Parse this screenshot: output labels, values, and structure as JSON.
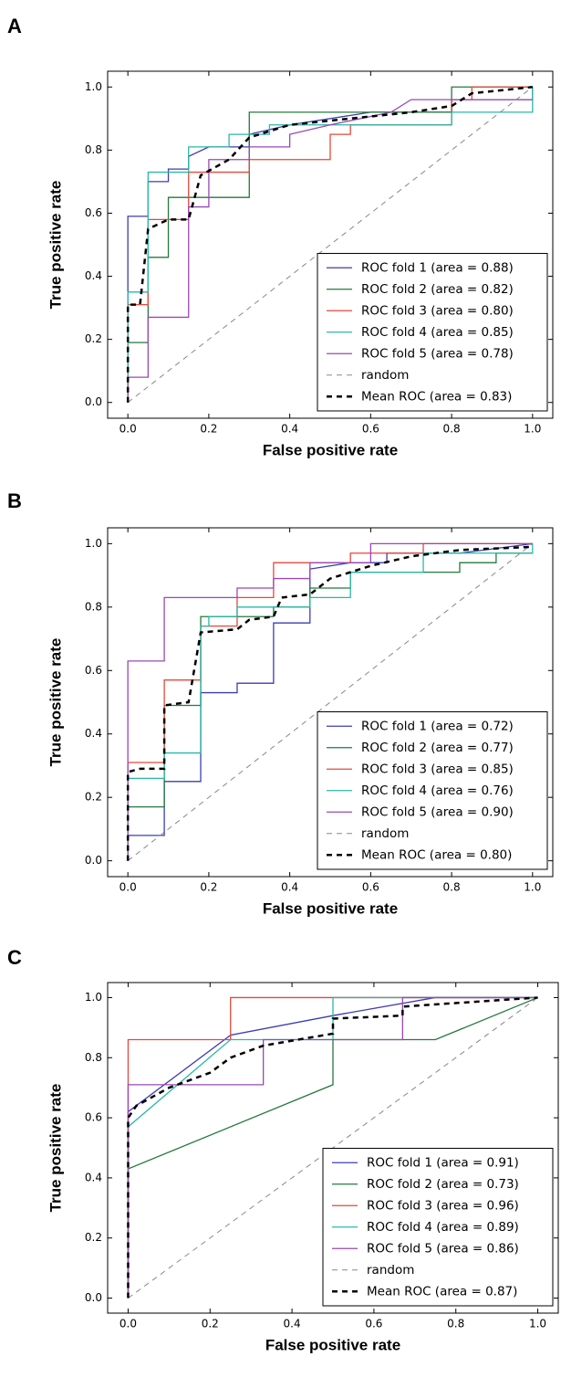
{
  "chart_data": [
    {
      "type": "line",
      "panel_label": "A",
      "xlabel": "False positive rate",
      "ylabel": "True positive rate",
      "xlim": [
        -0.05,
        1.05
      ],
      "ylim": [
        -0.05,
        1.05
      ],
      "xticks": [
        {
          "value": 0,
          "label": "0.0"
        },
        {
          "value": 0.2,
          "label": "0.2"
        },
        {
          "value": 0.4,
          "label": "0.4"
        },
        {
          "value": 0.6,
          "label": "0.6"
        },
        {
          "value": 0.8,
          "label": "0.8"
        },
        {
          "value": 1,
          "label": "1.0"
        }
      ],
      "yticks": [
        {
          "value": 0,
          "label": "0.0"
        },
        {
          "value": 0.2,
          "label": "0.2"
        },
        {
          "value": 0.4,
          "label": "0.4"
        },
        {
          "value": 0.6,
          "label": "0.6"
        },
        {
          "value": 0.8,
          "label": "0.8"
        },
        {
          "value": 1,
          "label": "1.0"
        }
      ],
      "legend": "lower right",
      "series": [
        {
          "name": "ROC fold 1 (area = 0.88)",
          "color": "#3d3db0",
          "linestyle": "solid",
          "linewidth": 1.3,
          "x": [
            0,
            0,
            0.05,
            0.05,
            0.1,
            0.1,
            0.15,
            0.15,
            0.2,
            0.3,
            0.3,
            0.4,
            0.6,
            0.8,
            0.8,
            1,
            1
          ],
          "values": [
            0,
            0.59,
            0.59,
            0.7,
            0.7,
            0.74,
            0.74,
            0.78,
            0.81,
            0.81,
            0.85,
            0.88,
            0.92,
            0.92,
            0.96,
            0.96,
            1
          ]
        },
        {
          "name": "ROC fold 2 (area = 0.82)",
          "color": "#237a3c",
          "linestyle": "solid",
          "linewidth": 1.3,
          "x": [
            0,
            0,
            0.05,
            0.05,
            0.1,
            0.1,
            0.3,
            0.3,
            0.8,
            0.8,
            1
          ],
          "values": [
            0,
            0.19,
            0.19,
            0.46,
            0.46,
            0.65,
            0.65,
            0.92,
            0.92,
            1,
            1
          ]
        },
        {
          "name": "ROC fold 3 (area = 0.80)",
          "color": "#e5483c",
          "linestyle": "solid",
          "linewidth": 1.3,
          "x": [
            0,
            0,
            0.05,
            0.05,
            0.15,
            0.15,
            0.3,
            0.3,
            0.5,
            0.5,
            0.55,
            0.55,
            0.8,
            0.8,
            0.85,
            0.85,
            1
          ],
          "values": [
            0,
            0.31,
            0.31,
            0.58,
            0.58,
            0.73,
            0.73,
            0.77,
            0.77,
            0.85,
            0.85,
            0.88,
            0.88,
            0.96,
            0.96,
            1,
            1
          ]
        },
        {
          "name": "ROC fold 4 (area = 0.85)",
          "color": "#2bb8a8",
          "linestyle": "solid",
          "linewidth": 1.3,
          "x": [
            0,
            0,
            0.05,
            0.05,
            0.15,
            0.15,
            0.25,
            0.25,
            0.35,
            0.35,
            0.8,
            0.8,
            1,
            1
          ],
          "values": [
            0,
            0.35,
            0.35,
            0.73,
            0.73,
            0.81,
            0.81,
            0.85,
            0.85,
            0.88,
            0.88,
            0.92,
            0.92,
            1
          ]
        },
        {
          "name": "ROC fold 5 (area = 0.78)",
          "color": "#9a48b4",
          "linestyle": "solid",
          "linewidth": 1.3,
          "x": [
            0,
            0,
            0.05,
            0.05,
            0.15,
            0.15,
            0.2,
            0.2,
            0.3,
            0.3,
            0.4,
            0.4,
            0.5,
            0.65,
            0.7,
            1
          ],
          "values": [
            0,
            0.08,
            0.08,
            0.27,
            0.27,
            0.62,
            0.62,
            0.77,
            0.77,
            0.81,
            0.81,
            0.85,
            0.88,
            0.92,
            0.96,
            0.96
          ]
        },
        {
          "name": "random",
          "color": "#888888",
          "linestyle": "dashed",
          "linewidth": 1,
          "x": [
            0,
            1
          ],
          "values": [
            0,
            1
          ]
        },
        {
          "name": "Mean ROC (area = 0.83)",
          "color": "#000000",
          "linestyle": "dashed",
          "linewidth": 2.5,
          "x": [
            0,
            0,
            0.03,
            0.05,
            0.1,
            0.15,
            0.18,
            0.25,
            0.3,
            0.4,
            0.55,
            0.7,
            0.8,
            0.85,
            1
          ],
          "values": [
            0,
            0.31,
            0.31,
            0.55,
            0.58,
            0.58,
            0.72,
            0.77,
            0.84,
            0.88,
            0.9,
            0.92,
            0.94,
            0.98,
            1
          ]
        }
      ]
    },
    {
      "type": "line",
      "panel_label": "B",
      "xlabel": "False positive rate",
      "ylabel": "True positive rate",
      "xlim": [
        -0.05,
        1.05
      ],
      "ylim": [
        -0.05,
        1.05
      ],
      "xticks": [
        {
          "value": 0,
          "label": "0.0"
        },
        {
          "value": 0.2,
          "label": "0.2"
        },
        {
          "value": 0.4,
          "label": "0.4"
        },
        {
          "value": 0.6,
          "label": "0.6"
        },
        {
          "value": 0.8,
          "label": "0.8"
        },
        {
          "value": 1,
          "label": "1.0"
        }
      ],
      "yticks": [
        {
          "value": 0,
          "label": "0.0"
        },
        {
          "value": 0.2,
          "label": "0.2"
        },
        {
          "value": 0.4,
          "label": "0.4"
        },
        {
          "value": 0.6,
          "label": "0.6"
        },
        {
          "value": 0.8,
          "label": "0.8"
        },
        {
          "value": 1,
          "label": "1.0"
        }
      ],
      "legend": "lower right",
      "series": [
        {
          "name": "ROC fold 1 (area = 0.72)",
          "color": "#3d3db0",
          "linestyle": "solid",
          "linewidth": 1.3,
          "x": [
            0,
            0,
            0.09,
            0.09,
            0.18,
            0.18,
            0.27,
            0.27,
            0.36,
            0.36,
            0.45,
            0.45,
            0.55,
            0.64,
            0.64,
            0.82,
            1
          ],
          "values": [
            0,
            0.08,
            0.08,
            0.25,
            0.25,
            0.53,
            0.53,
            0.56,
            0.56,
            0.75,
            0.75,
            0.92,
            0.94,
            0.94,
            0.97,
            0.97,
            1
          ]
        },
        {
          "name": "ROC fold 2 (area = 0.77)",
          "color": "#237a3c",
          "linestyle": "solid",
          "linewidth": 1.3,
          "x": [
            0,
            0,
            0.09,
            0.09,
            0.18,
            0.18,
            0.36,
            0.36,
            0.45,
            0.45,
            0.55,
            0.55,
            0.82,
            0.82,
            0.91,
            0.91,
            1
          ],
          "values": [
            0,
            0.17,
            0.17,
            0.49,
            0.49,
            0.77,
            0.77,
            0.8,
            0.8,
            0.86,
            0.86,
            0.91,
            0.91,
            0.94,
            0.94,
            0.97,
            0.97
          ]
        },
        {
          "name": "ROC fold 3 (area = 0.85)",
          "color": "#e5483c",
          "linestyle": "solid",
          "linewidth": 1.3,
          "x": [
            0,
            0,
            0.09,
            0.09,
            0.18,
            0.18,
            0.27,
            0.27,
            0.36,
            0.36,
            0.55,
            0.55,
            0.73,
            0.73,
            1
          ],
          "values": [
            0,
            0.31,
            0.31,
            0.57,
            0.57,
            0.74,
            0.74,
            0.83,
            0.83,
            0.94,
            0.94,
            0.97,
            0.97,
            1,
            1
          ]
        },
        {
          "name": "ROC fold 4 (area = 0.76)",
          "color": "#2bb8a8",
          "linestyle": "solid",
          "linewidth": 1.3,
          "x": [
            0,
            0,
            0.09,
            0.09,
            0.18,
            0.18,
            0.2,
            0.2,
            0.27,
            0.27,
            0.45,
            0.45,
            0.55,
            0.55,
            0.73,
            0.73,
            1,
            1
          ],
          "values": [
            0,
            0.26,
            0.26,
            0.34,
            0.34,
            0.74,
            0.74,
            0.77,
            0.77,
            0.8,
            0.8,
            0.83,
            0.83,
            0.91,
            0.91,
            0.97,
            0.97,
            1
          ]
        },
        {
          "name": "ROC fold 5 (area = 0.90)",
          "color": "#9a48b4",
          "linestyle": "solid",
          "linewidth": 1.3,
          "x": [
            0,
            0,
            0.09,
            0.09,
            0.27,
            0.27,
            0.36,
            0.36,
            0.45,
            0.45,
            0.6,
            0.6,
            1
          ],
          "values": [
            0,
            0.63,
            0.63,
            0.83,
            0.83,
            0.86,
            0.86,
            0.89,
            0.89,
            0.94,
            0.94,
            1,
            1
          ]
        },
        {
          "name": "random",
          "color": "#888888",
          "linestyle": "dashed",
          "linewidth": 1,
          "x": [
            0,
            1
          ],
          "values": [
            0,
            1
          ]
        },
        {
          "name": "Mean ROC (area = 0.80)",
          "color": "#000000",
          "linestyle": "dashed",
          "linewidth": 2.5,
          "x": [
            0,
            0,
            0.03,
            0.09,
            0.09,
            0.15,
            0.18,
            0.27,
            0.3,
            0.36,
            0.38,
            0.45,
            0.5,
            0.6,
            0.7,
            0.82,
            1
          ],
          "values": [
            0,
            0.28,
            0.29,
            0.29,
            0.49,
            0.5,
            0.72,
            0.73,
            0.76,
            0.77,
            0.83,
            0.84,
            0.89,
            0.93,
            0.96,
            0.98,
            0.99
          ]
        }
      ]
    },
    {
      "type": "line",
      "panel_label": "C",
      "xlabel": "False positive rate",
      "ylabel": "True positive rate",
      "xlim": [
        -0.05,
        1.05
      ],
      "ylim": [
        -0.05,
        1.05
      ],
      "xticks": [
        {
          "value": 0,
          "label": "0.0"
        },
        {
          "value": 0.2,
          "label": "0.2"
        },
        {
          "value": 0.4,
          "label": "0.4"
        },
        {
          "value": 0.6,
          "label": "0.6"
        },
        {
          "value": 0.8,
          "label": "0.8"
        },
        {
          "value": 1,
          "label": "1.0"
        }
      ],
      "yticks": [
        {
          "value": 0,
          "label": "0.0"
        },
        {
          "value": 0.2,
          "label": "0.2"
        },
        {
          "value": 0.4,
          "label": "0.4"
        },
        {
          "value": 0.6,
          "label": "0.6"
        },
        {
          "value": 0.8,
          "label": "0.8"
        },
        {
          "value": 1,
          "label": "1.0"
        }
      ],
      "legend": "lower right",
      "series": [
        {
          "name": "ROC fold 1 (area = 0.91)",
          "color": "#3d3db0",
          "linestyle": "solid",
          "linewidth": 1.3,
          "x": [
            0,
            0,
            0.25,
            0.5,
            0.75,
            1
          ],
          "values": [
            0,
            0.62,
            0.875,
            0.94,
            1,
            1
          ]
        },
        {
          "name": "ROC fold 2 (area = 0.73)",
          "color": "#237a3c",
          "linestyle": "solid",
          "linewidth": 1.3,
          "x": [
            0,
            0,
            0.5,
            0.5,
            0.75,
            1
          ],
          "values": [
            0,
            0.43,
            0.71,
            0.86,
            0.86,
            1
          ]
        },
        {
          "name": "ROC fold 3 (area = 0.96)",
          "color": "#e5483c",
          "linestyle": "solid",
          "linewidth": 1.3,
          "x": [
            0,
            0,
            0.25,
            0.25,
            1
          ],
          "values": [
            0,
            0.86,
            0.86,
            1,
            1
          ]
        },
        {
          "name": "ROC fold 4 (area = 0.89)",
          "color": "#2bb8a8",
          "linestyle": "solid",
          "linewidth": 1.3,
          "x": [
            0,
            0,
            0.25,
            0.5,
            0.5,
            1
          ],
          "values": [
            0,
            0.57,
            0.86,
            0.86,
            1,
            1
          ]
        },
        {
          "name": "ROC fold 5 (area = 0.86)",
          "color": "#9a48b4",
          "linestyle": "solid",
          "linewidth": 1.3,
          "x": [
            0,
            0,
            0.33,
            0.33,
            0.67,
            0.67,
            1
          ],
          "values": [
            0,
            0.71,
            0.71,
            0.86,
            0.86,
            1,
            1
          ]
        },
        {
          "name": "random",
          "color": "#888888",
          "linestyle": "dashed",
          "linewidth": 1,
          "x": [
            0,
            1
          ],
          "values": [
            0,
            1
          ]
        },
        {
          "name": "Mean ROC (area = 0.87)",
          "color": "#000000",
          "linestyle": "dashed",
          "linewidth": 2.5,
          "x": [
            0,
            0,
            0.02,
            0.1,
            0.2,
            0.25,
            0.33,
            0.5,
            0.5,
            0.67,
            0.67,
            1
          ],
          "values": [
            0,
            0.6,
            0.64,
            0.7,
            0.75,
            0.8,
            0.84,
            0.88,
            0.93,
            0.94,
            0.97,
            1
          ]
        }
      ]
    }
  ]
}
